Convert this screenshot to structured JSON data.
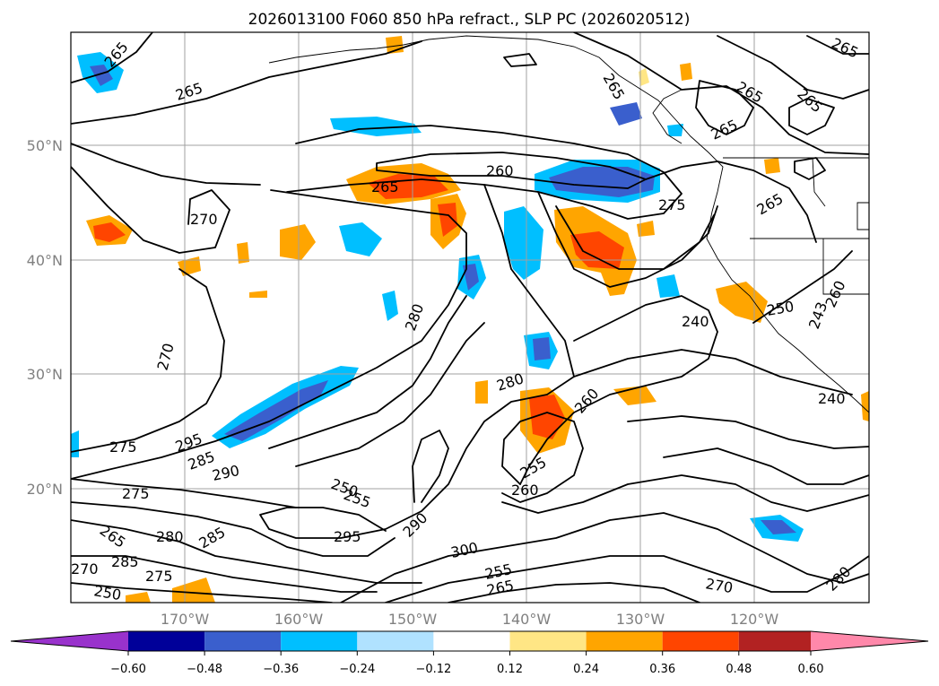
{
  "title": "2026013100 F060 850 hPa refract., SLP PC (2026020512)",
  "lat_labels": [
    "50°N",
    "40°N",
    "30°N",
    "20°N"
  ],
  "lon_labels": [
    "170°W",
    "160°W",
    "150°W",
    "140°W",
    "130°W",
    "120°W"
  ],
  "colorbar": {
    "colors": [
      "#9932cc",
      "#000099",
      "#3a5fcd",
      "#00bfff",
      "#b0e2ff",
      "#ffffff",
      "#ffe685",
      "#ffa500",
      "#ff4500",
      "#b22222",
      "#ff88aa"
    ],
    "tick_labels": [
      "−0.60",
      "−0.48",
      "−0.36",
      "−0.24",
      "−0.12",
      "0.12",
      "0.24",
      "0.36",
      "0.48",
      "0.60"
    ]
  },
  "contour_labels": [
    "265",
    "265",
    "265",
    "265",
    "265",
    "265",
    "265",
    "260",
    "265",
    "270",
    "275",
    "265",
    "280",
    "240",
    "250",
    "260",
    "243",
    "280",
    "260",
    "240",
    "270",
    "275",
    "295",
    "285",
    "290",
    "275",
    "250",
    "255",
    "255",
    "260",
    "265",
    "280",
    "285",
    "295",
    "290",
    "300",
    "255",
    "265",
    "270",
    "280",
    "285",
    "275",
    "270",
    "250"
  ]
}
